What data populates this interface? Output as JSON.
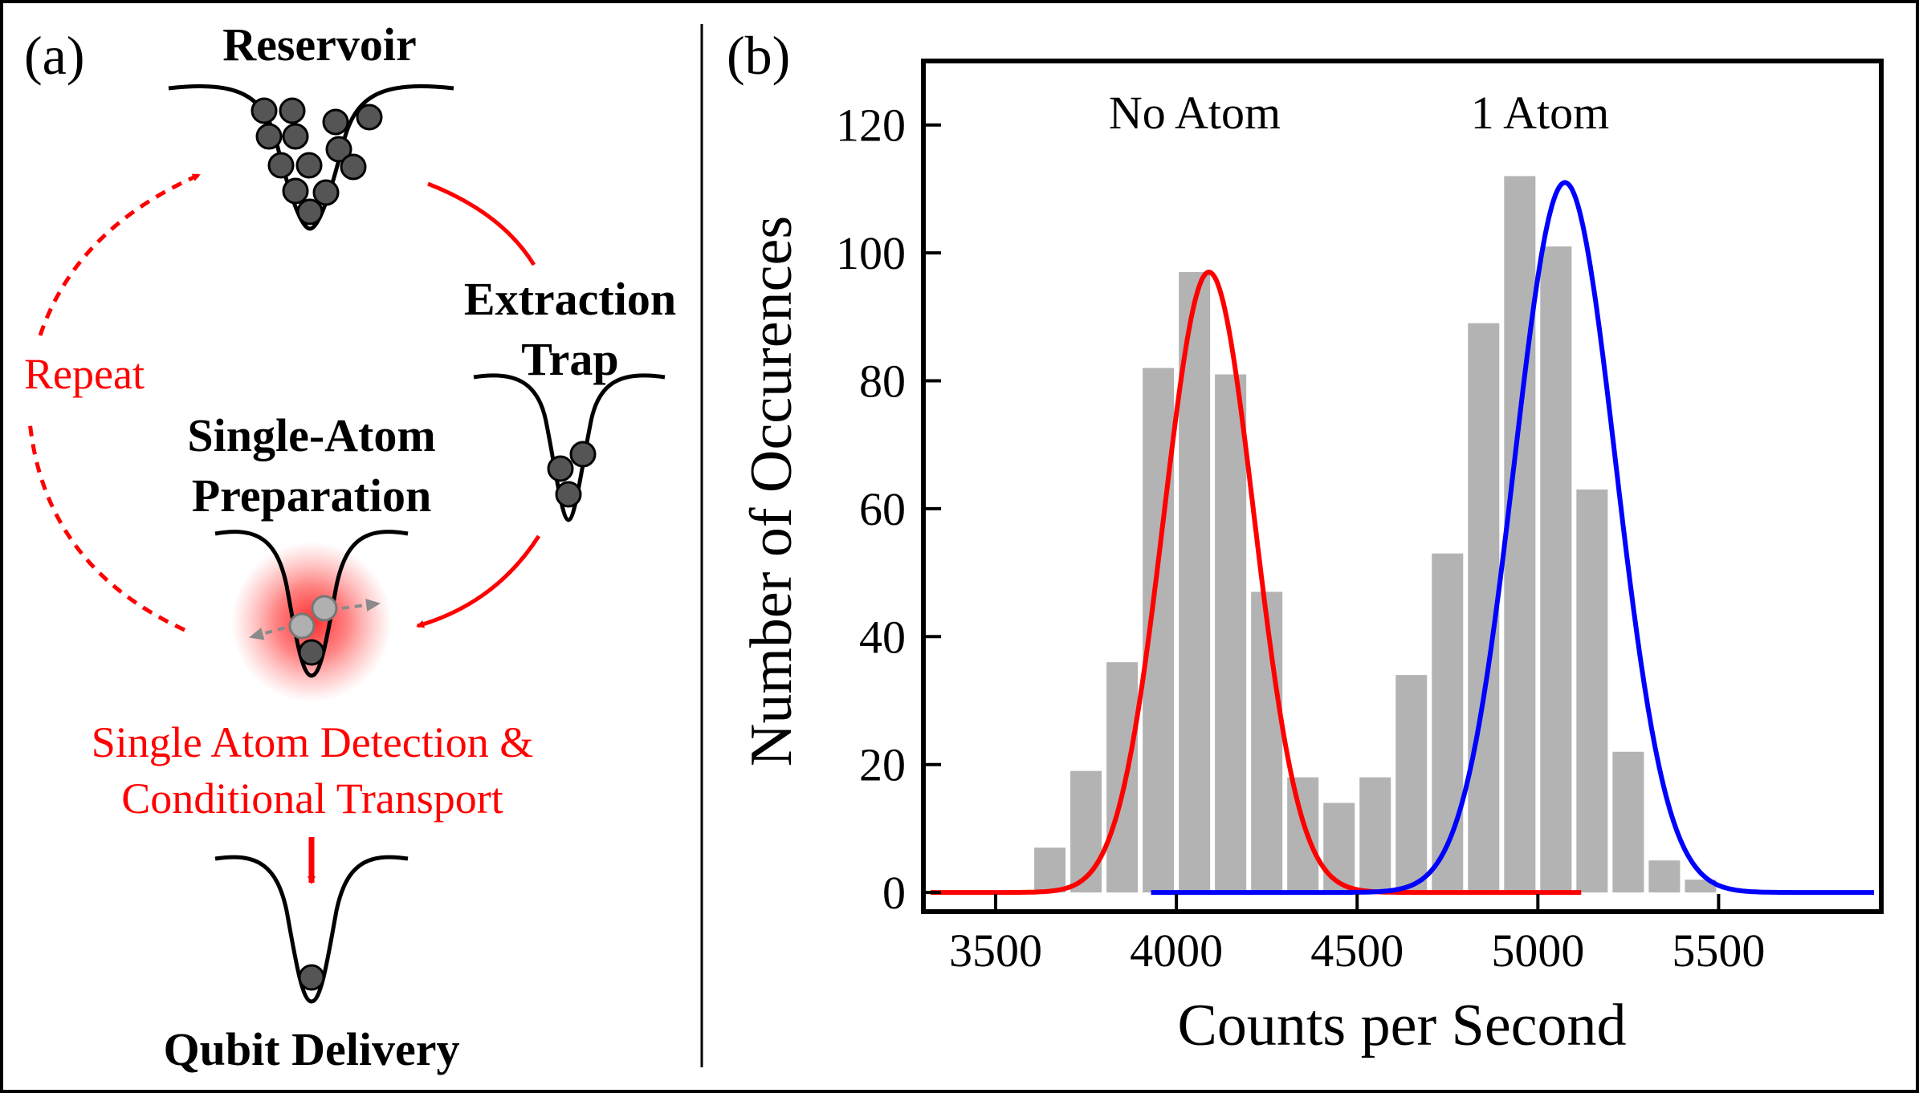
{
  "panel_a": {
    "label": "(a)",
    "reservoir_label": "Reservoir",
    "extraction_label_1": "Extraction",
    "extraction_label_2": "Trap",
    "preparation_label_1": "Single-Atom",
    "preparation_label_2": "Preparation",
    "repeat_label": "Repeat",
    "detection_label_1": "Single Atom Detection &",
    "detection_label_2": "Conditional Transport",
    "delivery_label": "Qubit Delivery",
    "colors": {
      "arrow": "#ff0000",
      "atom": "#555555",
      "atom_light": "#b0b0b0",
      "glow": "#ff2020"
    }
  },
  "panel_b": {
    "label": "(b)",
    "chart_data": {
      "type": "bar",
      "xlabel": "Counts per Second",
      "ylabel": "Number of Occurences",
      "xlim": [
        3300,
        5950
      ],
      "ylim": [
        -3,
        130
      ],
      "xticks": [
        3500,
        4000,
        4500,
        5000,
        5500
      ],
      "yticks": [
        0,
        20,
        40,
        60,
        80,
        100,
        120
      ],
      "grid": false,
      "bin_width": 100,
      "bars": {
        "color": "#b3b3b3",
        "bin_centers": [
          3650,
          3750,
          3850,
          3950,
          4050,
          4150,
          4250,
          4350,
          4450,
          4550,
          4650,
          4750,
          4850,
          4950,
          5050,
          5150,
          5250,
          5350,
          5450,
          5550
        ],
        "values": [
          7,
          19,
          36,
          82,
          97,
          81,
          47,
          18,
          14,
          18,
          34,
          53,
          89,
          112,
          101,
          63,
          22,
          5,
          2,
          0
        ]
      },
      "series": [
        {
          "name": "No Atom",
          "type": "gaussian_fit",
          "color": "#ff0000",
          "amplitude": 97,
          "center": 4090,
          "sigma": 125,
          "x_range": [
            3320,
            5120
          ]
        },
        {
          "name": "1 Atom",
          "type": "gaussian_fit",
          "color": "#0000ff",
          "amplitude": 111,
          "center": 5075,
          "sigma": 140,
          "x_range": [
            3930,
            5930
          ]
        }
      ],
      "annotations": [
        "No Atom",
        "1 Atom"
      ]
    }
  }
}
